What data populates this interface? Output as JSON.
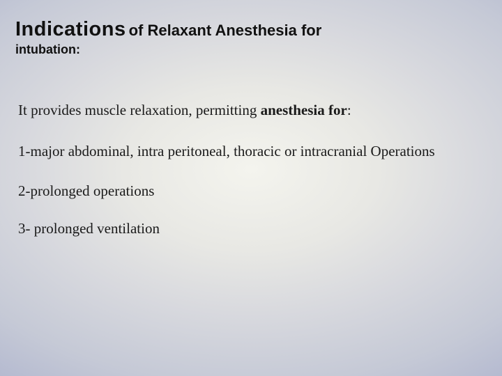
{
  "title": {
    "main": "Indications",
    "sub1": "of Relaxant Anesthesia for",
    "sub2": "intubation:"
  },
  "intro": {
    "plain": "It provides muscle relaxation, permitting  ",
    "bold": "anesthesia for",
    "tail": ":"
  },
  "items": [
    "1-major  abdominal, intra peritoneal, thoracic or intracranial Operations",
    "2-prolonged operations",
    "3- prolonged ventilation"
  ],
  "style": {
    "background_gradient": {
      "type": "radial",
      "stops": [
        "#f4f4ee",
        "#e8e8e4",
        "#d8d9de",
        "#c5c9d6",
        "#aab0cc",
        "#8f96bb",
        "#737ba3",
        "#5e6690"
      ]
    },
    "title_font": "Verdana",
    "body_font": "Georgia",
    "title_main_size_pt": 22,
    "title_sub1_size_pt": 17,
    "title_sub2_size_pt": 14,
    "body_size_pt": 16,
    "text_color": "#1a1a1a"
  }
}
